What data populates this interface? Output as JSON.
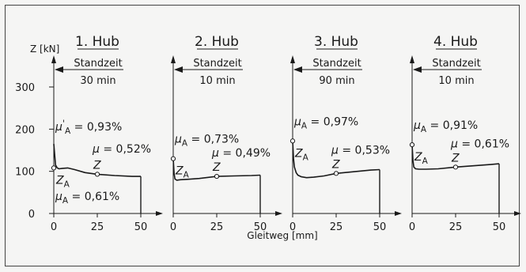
{
  "chart_data": {
    "type": "line",
    "ylabel": "Z [kN]",
    "xlabel": "Gleitweg [mm]",
    "ylim": [
      0,
      300
    ],
    "yticks": [
      0,
      100,
      200,
      300
    ],
    "xlim": [
      0,
      50
    ],
    "xticks": [
      0,
      25,
      50
    ],
    "grid": false,
    "panels": [
      {
        "title": "1. Hub",
        "standzeit_label": "Standzeit",
        "standzeit_value": "30 min",
        "annotations": [
          {
            "text": "μ'A = 0,93%",
            "x": 0,
            "y": 165
          },
          {
            "text": "μ = 0,52%",
            "x": 25,
            "y": 93
          },
          {
            "text": "μA = 0,61%",
            "x": 0,
            "y": 108
          }
        ],
        "point_labels": [
          {
            "text": "ZA",
            "x": 0,
            "y": 108
          },
          {
            "text": "Z",
            "x": 25,
            "y": 93
          }
        ],
        "series": [
          {
            "x": [
              0,
              1,
              2,
              3,
              5,
              8,
              12,
              18,
              25,
              35,
              45,
              50
            ],
            "y": [
              165,
              115,
              108,
              106,
              107,
              108,
              104,
              97,
              93,
              90,
              88,
              88
            ]
          }
        ]
      },
      {
        "title": "2. Hub",
        "standzeit_label": "Standzeit",
        "standzeit_value": "10 min",
        "annotations": [
          {
            "text": "μA = 0,73%",
            "x": 0,
            "y": 130
          },
          {
            "text": "μ = 0,49%",
            "x": 25,
            "y": 88
          }
        ],
        "point_labels": [
          {
            "text": "ZA",
            "x": 0,
            "y": 130
          },
          {
            "text": "Z",
            "x": 25,
            "y": 88
          }
        ],
        "series": [
          {
            "x": [
              0,
              0.5,
              1,
              2,
              4,
              8,
              15,
              25,
              35,
              45,
              50
            ],
            "y": [
              130,
              95,
              82,
              79,
              80,
              81,
              83,
              88,
              89,
              90,
              91
            ]
          }
        ]
      },
      {
        "title": "3. Hub",
        "standzeit_label": "Standzeit",
        "standzeit_value": "90 min",
        "annotations": [
          {
            "text": "μA = 0,97%",
            "x": 0,
            "y": 172
          },
          {
            "text": "μ = 0,53%",
            "x": 25,
            "y": 95
          }
        ],
        "point_labels": [
          {
            "text": "ZA",
            "x": 0,
            "y": 172
          },
          {
            "text": "Z",
            "x": 25,
            "y": 95
          }
        ],
        "series": [
          {
            "x": [
              0,
              0.5,
              1,
              2,
              3,
              5,
              8,
              12,
              18,
              25,
              35,
              45,
              50
            ],
            "y": [
              172,
              130,
              110,
              97,
              91,
              87,
              85,
              86,
              89,
              95,
              99,
              103,
              104
            ]
          }
        ]
      },
      {
        "title": "4. Hub",
        "standzeit_label": "Standzeit",
        "standzeit_value": "10 min",
        "annotations": [
          {
            "text": "μA = 0,91%",
            "x": 0,
            "y": 163
          },
          {
            "text": "μ = 0,61%",
            "x": 25,
            "y": 110
          }
        ],
        "point_labels": [
          {
            "text": "ZA",
            "x": 0,
            "y": 163
          },
          {
            "text": "Z",
            "x": 25,
            "y": 110
          }
        ],
        "series": [
          {
            "x": [
              0,
              0.5,
              1,
              2,
              4,
              8,
              15,
              25,
              35,
              45,
              50
            ],
            "y": [
              163,
              125,
              110,
              106,
              105,
              105,
              106,
              110,
              113,
              116,
              118
            ]
          }
        ]
      }
    ]
  }
}
